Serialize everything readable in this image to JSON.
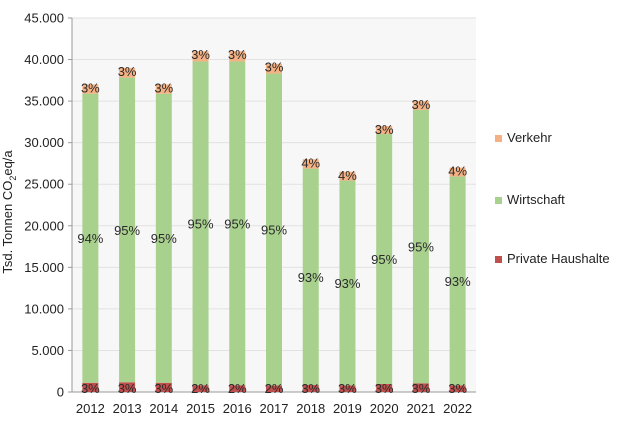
{
  "chart_data": {
    "type": "bar",
    "stacked": true,
    "ylabel_prefix": "Tsd. Tonnen CO",
    "ylabel_sub": "2",
    "ylabel_suffix": "eq/a",
    "ylim": [
      0,
      45000
    ],
    "ytick_values": [
      0,
      5000,
      10000,
      15000,
      20000,
      25000,
      30000,
      35000,
      40000,
      45000
    ],
    "ytick_labels": [
      "0",
      "5.000",
      "10.000",
      "15.000",
      "20.000",
      "25.000",
      "30.000",
      "35.000",
      "40.000",
      "45.000"
    ],
    "categories": [
      "2012",
      "2013",
      "2014",
      "2015",
      "2016",
      "2017",
      "2018",
      "2019",
      "2020",
      "2021",
      "2022"
    ],
    "totals": [
      37000,
      39000,
      37000,
      41000,
      41000,
      39500,
      28000,
      26500,
      32000,
      35000,
      27000
    ],
    "series": [
      {
        "name": "Private Haushalte",
        "color": "#c0504d",
        "labels": [
          "3%",
          "3%",
          "3%",
          "2%",
          "2%",
          "2%",
          "3%",
          "3%",
          "3%",
          "3%",
          "3%"
        ]
      },
      {
        "name": "Wirtschaft",
        "color": "#a9d18e",
        "labels": [
          "94%",
          "95%",
          "95%",
          "95%",
          "95%",
          "95%",
          "93%",
          "93%",
          "95%",
          "95%",
          "93%"
        ]
      },
      {
        "name": "Verkehr",
        "color": "#f4b183",
        "labels": [
          "3%",
          "3%",
          "3%",
          "3%",
          "3%",
          "3%",
          "4%",
          "4%",
          "3%",
          "3%",
          "4%"
        ]
      }
    ],
    "legend_order": [
      "Verkehr",
      "Wirtschaft",
      "Private Haushalte"
    ],
    "legend_position": "right",
    "grid": true
  }
}
